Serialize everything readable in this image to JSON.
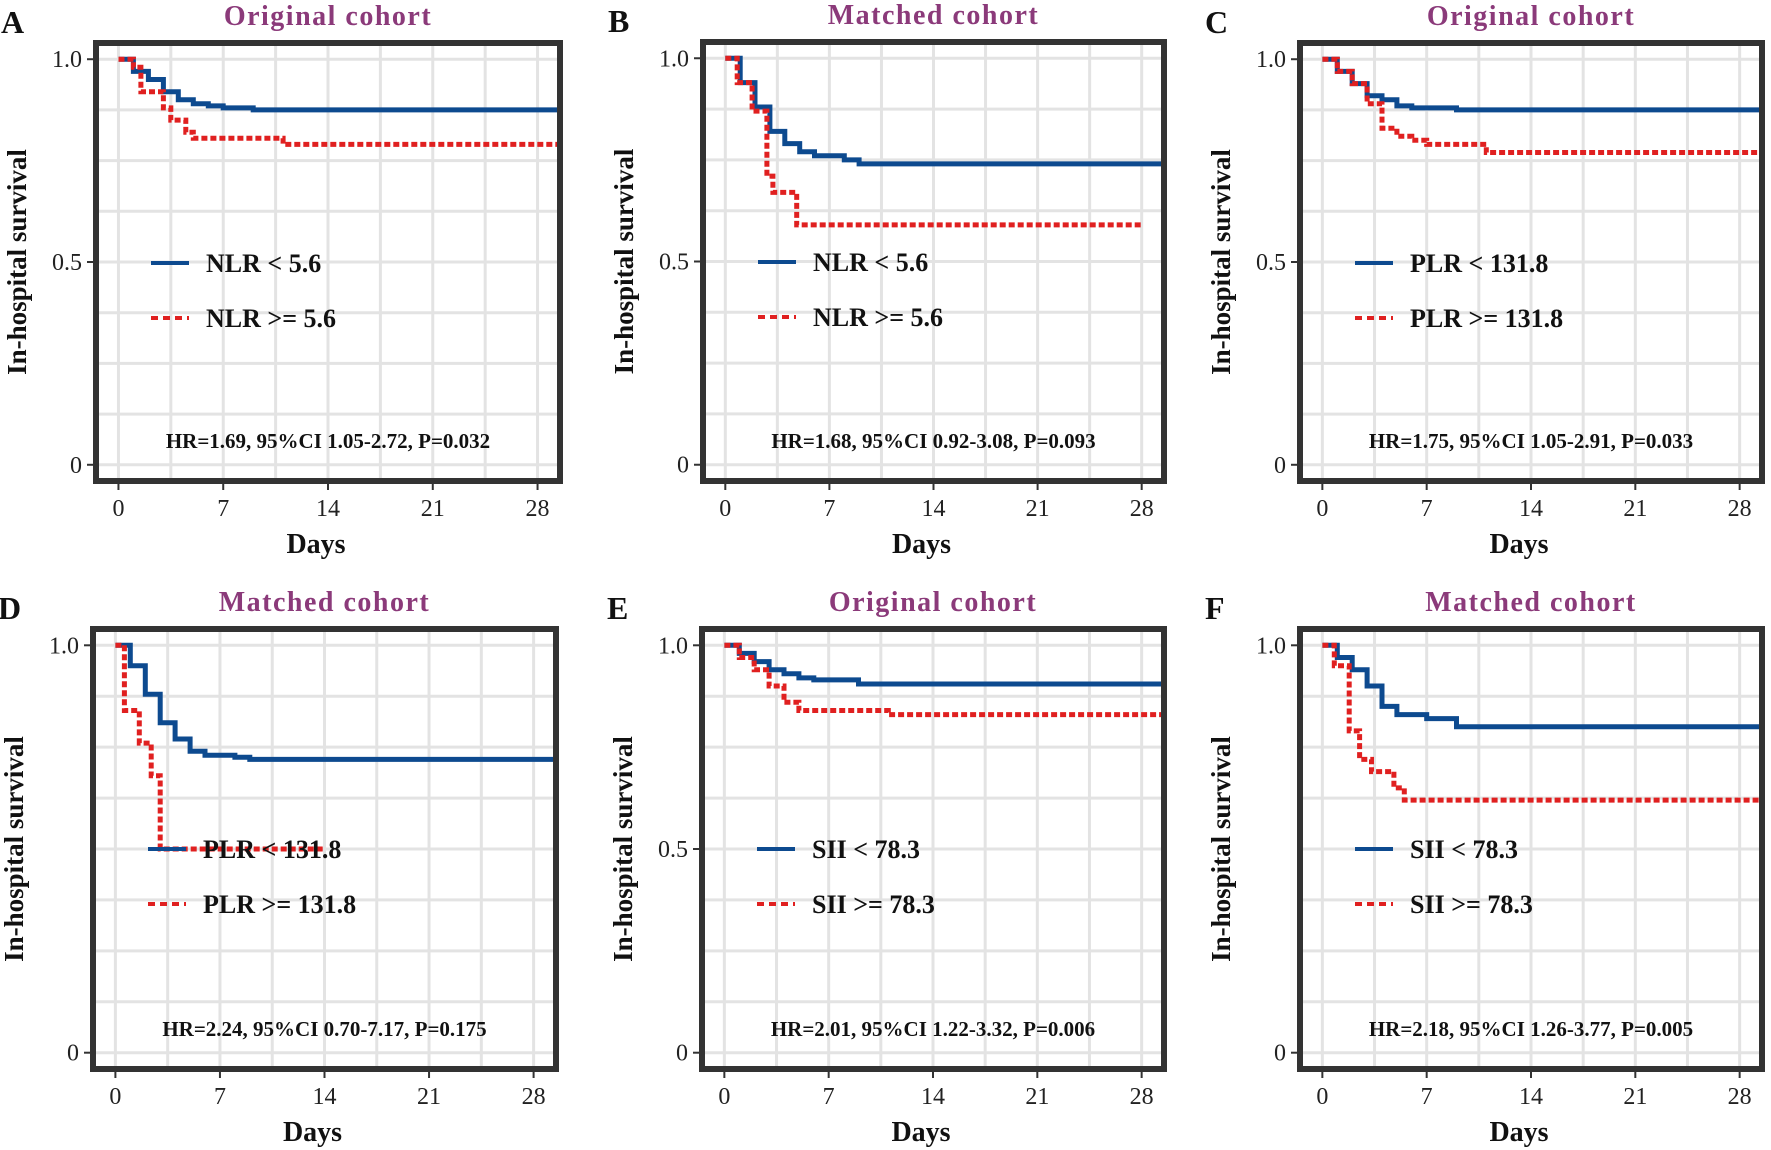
{
  "colors": {
    "low": "#0d4a8f",
    "high": "#e02020",
    "title": "#8b3a7a",
    "frame": "#333333",
    "grid": "#e3e3e3"
  },
  "chart_data": [
    {
      "type": "line",
      "panel": "A",
      "title": "Original cohort",
      "xlabel": "Days",
      "ylabel": "In-hospital survival",
      "xlim": [
        -1.5,
        29.5
      ],
      "ylim": [
        -0.04,
        1.04
      ],
      "xticks": [
        0,
        7,
        14,
        21,
        28
      ],
      "xtick_labels": [
        "0",
        "7",
        "14",
        "21",
        "28"
      ],
      "yticks": [
        0,
        0.5,
        1.0
      ],
      "ytick_labels": [
        "0",
        "0.5",
        "1.0"
      ],
      "series": [
        {
          "name": "NLR < 5.6",
          "style": "solid",
          "color_key": "low",
          "x": [
            0,
            1,
            2,
            3,
            4,
            5,
            6,
            7,
            9,
            29.5
          ],
          "y": [
            1.0,
            0.97,
            0.95,
            0.92,
            0.9,
            0.89,
            0.885,
            0.88,
            0.875,
            0.875
          ]
        },
        {
          "name": "NLR >= 5.6",
          "style": "dotted",
          "color_key": "high",
          "x": [
            0,
            1,
            1.5,
            3,
            3.5,
            4.5,
            5,
            11,
            29.5
          ],
          "y": [
            1.0,
            0.98,
            0.92,
            0.88,
            0.85,
            0.82,
            0.805,
            0.79,
            0.79
          ]
        }
      ],
      "legend": [
        "NLR < 5.6",
        "NLR >= 5.6"
      ],
      "annotation": "HR=1.69, 95%CI 1.05-2.72, P=0.032"
    },
    {
      "type": "line",
      "panel": "B",
      "title": "Matched cohort",
      "xlabel": "Days",
      "ylabel": "In-hospital survival",
      "xlim": [
        -1.5,
        29.5
      ],
      "ylim": [
        -0.04,
        1.04
      ],
      "xticks": [
        0,
        7,
        14,
        21,
        28
      ],
      "xtick_labels": [
        "0",
        "7",
        "14",
        "21",
        "28"
      ],
      "yticks": [
        0,
        0.5,
        1.0
      ],
      "ytick_labels": [
        "0",
        "0.5",
        "1.0"
      ],
      "series": [
        {
          "name": "NLR < 5.6",
          "style": "solid",
          "color_key": "low",
          "x": [
            0,
            1,
            2,
            3,
            4,
            5,
            6,
            8,
            9,
            29.5
          ],
          "y": [
            1.0,
            0.94,
            0.88,
            0.82,
            0.79,
            0.77,
            0.76,
            0.75,
            0.74,
            0.74
          ]
        },
        {
          "name": "NLR >= 5.6",
          "style": "dotted",
          "color_key": "high",
          "x": [
            0,
            0.8,
            1.8,
            2.8,
            3.2,
            4.8,
            28
          ],
          "y": [
            1.0,
            0.94,
            0.87,
            0.71,
            0.67,
            0.59,
            0.59
          ]
        }
      ],
      "legend": [
        "NLR < 5.6",
        "NLR >= 5.6"
      ],
      "annotation": "HR=1.68, 95%CI 0.92-3.08, P=0.093"
    },
    {
      "type": "line",
      "panel": "C",
      "title": "Original cohort",
      "xlabel": "Days",
      "ylabel": "In-hospital survival",
      "xlim": [
        -1.5,
        29.5
      ],
      "ylim": [
        -0.04,
        1.04
      ],
      "xticks": [
        0,
        7,
        14,
        21,
        28
      ],
      "xtick_labels": [
        "0",
        "7",
        "14",
        "21",
        "28"
      ],
      "yticks": [
        0,
        0.5,
        1.0
      ],
      "ytick_labels": [
        "0",
        "0.5",
        "1.0"
      ],
      "series": [
        {
          "name": "PLR < 131.8",
          "style": "solid",
          "color_key": "low",
          "x": [
            0,
            1,
            2,
            3,
            4,
            5,
            6,
            9,
            29.5
          ],
          "y": [
            1.0,
            0.97,
            0.94,
            0.91,
            0.9,
            0.885,
            0.88,
            0.875,
            0.875
          ]
        },
        {
          "name": "PLR >= 131.8",
          "style": "dotted",
          "color_key": "high",
          "x": [
            0,
            1,
            2,
            3,
            4,
            5,
            6,
            7,
            11,
            29.5
          ],
          "y": [
            1.0,
            0.97,
            0.94,
            0.89,
            0.83,
            0.81,
            0.8,
            0.79,
            0.77,
            0.77
          ]
        }
      ],
      "legend": [
        "PLR < 131.8",
        "PLR >= 131.8"
      ],
      "annotation": "HR=1.75, 95%CI 1.05-2.91, P=0.033"
    },
    {
      "type": "line",
      "panel": "D",
      "title": "Matched cohort",
      "xlabel": "Days",
      "ylabel": "In-hospital survival",
      "xlim": [
        -1.5,
        29.5
      ],
      "ylim": [
        -0.04,
        1.04
      ],
      "xticks": [
        0,
        7,
        14,
        21,
        28
      ],
      "xtick_labels": [
        "0",
        "7",
        "14",
        "21",
        "28"
      ],
      "yticks": [
        0,
        1.0
      ],
      "ytick_labels": [
        "0",
        "1.0"
      ],
      "series": [
        {
          "name": "PLR < 131.8",
          "style": "solid",
          "color_key": "low",
          "x": [
            0,
            1,
            2,
            3,
            4,
            5,
            6,
            8,
            9,
            29.5
          ],
          "y": [
            1.0,
            0.95,
            0.88,
            0.81,
            0.77,
            0.74,
            0.73,
            0.725,
            0.72,
            0.72
          ]
        },
        {
          "name": "PLR >= 131.8",
          "style": "dotted",
          "color_key": "high",
          "x": [
            0,
            0.6,
            1.6,
            2.4,
            3.0,
            14
          ],
          "y": [
            1.0,
            0.84,
            0.76,
            0.68,
            0.5,
            0.5
          ]
        }
      ],
      "legend": [
        "PLR < 131.8",
        "PLR >= 131.8"
      ],
      "annotation": "HR=2.24, 95%CI 0.70-7.17, P=0.175"
    },
    {
      "type": "line",
      "panel": "E",
      "title": "Original cohort",
      "xlabel": "Days",
      "ylabel": "In-hospital survival",
      "xlim": [
        -1.5,
        29.5
      ],
      "ylim": [
        -0.04,
        1.04
      ],
      "xticks": [
        0,
        7,
        14,
        21,
        28
      ],
      "xtick_labels": [
        "0",
        "7",
        "14",
        "21",
        "28"
      ],
      "yticks": [
        0,
        0.5,
        1.0
      ],
      "ytick_labels": [
        "0",
        "0.5",
        "1.0"
      ],
      "series": [
        {
          "name": "SII < 78.3",
          "style": "solid",
          "color_key": "low",
          "x": [
            0,
            1,
            2,
            3,
            4,
            5,
            6,
            9,
            29.5
          ],
          "y": [
            1.0,
            0.98,
            0.96,
            0.94,
            0.93,
            0.92,
            0.915,
            0.905,
            0.905
          ]
        },
        {
          "name": "SII >= 78.3",
          "style": "dotted",
          "color_key": "high",
          "x": [
            0,
            1,
            2,
            3,
            4,
            5,
            11,
            29.5
          ],
          "y": [
            1.0,
            0.97,
            0.94,
            0.9,
            0.86,
            0.84,
            0.83,
            0.83
          ]
        }
      ],
      "legend": [
        "SII < 78.3",
        "SII >= 78.3"
      ],
      "annotation": "HR=2.01, 95%CI 1.22-3.32, P=0.006"
    },
    {
      "type": "line",
      "panel": "F",
      "title": "Matched cohort",
      "xlabel": "Days",
      "ylabel": "In-hospital survival",
      "xlim": [
        -1.5,
        29.5
      ],
      "ylim": [
        -0.04,
        1.04
      ],
      "xticks": [
        0,
        7,
        14,
        21,
        28
      ],
      "xtick_labels": [
        "0",
        "7",
        "14",
        "21",
        "28"
      ],
      "yticks": [
        0,
        1.0
      ],
      "ytick_labels": [
        "0",
        "1.0"
      ],
      "series": [
        {
          "name": "SII < 78.3",
          "style": "solid",
          "color_key": "low",
          "x": [
            0,
            1,
            2,
            3,
            4,
            5,
            7,
            9,
            29.5
          ],
          "y": [
            1.0,
            0.97,
            0.94,
            0.9,
            0.85,
            0.83,
            0.82,
            0.8,
            0.8
          ]
        },
        {
          "name": "SII >= 78.3",
          "style": "dotted",
          "color_key": "high",
          "x": [
            0,
            0.8,
            1.8,
            2.5,
            3.3,
            4.8,
            5.5,
            29.5
          ],
          "y": [
            1.0,
            0.95,
            0.79,
            0.72,
            0.69,
            0.65,
            0.62,
            0.62
          ]
        }
      ],
      "legend": [
        "SII < 78.3",
        "SII >= 78.3"
      ],
      "annotation": "HR=2.18, 95%CI 1.26-3.77, P=0.005"
    }
  ]
}
